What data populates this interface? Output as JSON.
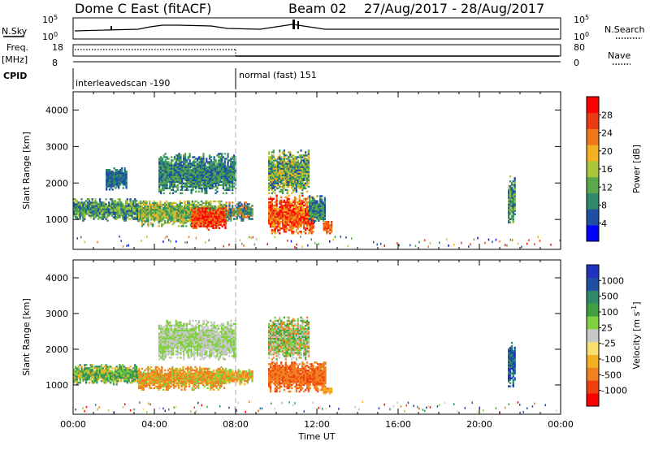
{
  "header": {
    "title": "Dome C East (fitACF)",
    "beam": "Beam 02",
    "date_range": "27/Aug/2017 - 28/Aug/2017"
  },
  "top_panels": {
    "nsky_label": "N.Sky",
    "nsky_ticks": [
      "10^5",
      "10^0"
    ],
    "nsearch_label": "N.Search",
    "nsearch_ticks": [
      "10^5",
      "10^0"
    ],
    "freq_label": "Freq.",
    "freq_unit": "[MHz]",
    "freq_ticks": [
      "18",
      "8"
    ],
    "nave_label": "Nave",
    "nave_ticks": [
      "80",
      "0"
    ],
    "cpid_label": "CPID",
    "cpid_segments": [
      {
        "label": "interleavedscan -190",
        "start_h": 0,
        "end_h": 8
      },
      {
        "label": "normal (fast) 151",
        "start_h": 8,
        "end_h": 24
      }
    ]
  },
  "chart_data": [
    {
      "type": "heatmap",
      "quantity": "Power",
      "ylabel": "Slant Range [km]",
      "colorbar_label": "Power [dB]",
      "colorbar_ticks": [
        "4",
        "8",
        "12",
        "16",
        "20",
        "24",
        "28"
      ],
      "colorbar_colors": [
        "#0000ff",
        "#1f4fa3",
        "#2e8b6a",
        "#5aa84a",
        "#a8c83a",
        "#f4b020",
        "#f07818",
        "#ec3a12",
        "#ff0000"
      ],
      "ylim": [
        180,
        4500
      ],
      "yticks": [
        "1000",
        "2000",
        "3000",
        "4000"
      ],
      "xlim": [
        0,
        24
      ],
      "marker_time_h": 8,
      "echo_regions": [
        {
          "t0": 0.0,
          "t1": 3.2,
          "r0": 950,
          "r1": 1550,
          "colors": [
            "#5aa84a",
            "#2e8b6a",
            "#a8c83a",
            "#1f4fa3"
          ]
        },
        {
          "t0": 3.2,
          "t1": 7.5,
          "r0": 800,
          "r1": 1500,
          "colors": [
            "#5aa84a",
            "#a8c83a",
            "#f4b020",
            "#2e8b6a"
          ]
        },
        {
          "t0": 5.8,
          "t1": 7.5,
          "r0": 700,
          "r1": 1300,
          "colors": [
            "#ec3a12",
            "#f07818",
            "#ff0000"
          ]
        },
        {
          "t0": 7.5,
          "t1": 8.8,
          "r0": 950,
          "r1": 1450,
          "colors": [
            "#5aa84a",
            "#2e8b6a",
            "#f07818",
            "#1f4fa3"
          ]
        },
        {
          "t0": 9.6,
          "t1": 11.8,
          "r0": 600,
          "r1": 1650,
          "colors": [
            "#ec3a12",
            "#ff0000",
            "#f07818",
            "#f4b020"
          ]
        },
        {
          "t0": 11.6,
          "t1": 12.4,
          "r0": 900,
          "r1": 1650,
          "colors": [
            "#5aa84a",
            "#2e8b6a",
            "#1f4fa3"
          ]
        },
        {
          "t0": 12.3,
          "t1": 12.7,
          "r0": 600,
          "r1": 950,
          "colors": [
            "#f07818",
            "#ec3a12"
          ]
        },
        {
          "t0": 9.6,
          "t1": 11.6,
          "r0": 1700,
          "r1": 2900,
          "colors": [
            "#a8c83a",
            "#2e8b6a",
            "#5aa84a",
            "#1f4fa3",
            "#f4b020"
          ]
        },
        {
          "t0": 1.6,
          "t1": 2.6,
          "r0": 1800,
          "r1": 2400,
          "colors": [
            "#1f4fa3",
            "#2e8b6a"
          ]
        },
        {
          "t0": 4.2,
          "t1": 8.0,
          "r0": 1700,
          "r1": 2800,
          "colors": [
            "#1f4fa3",
            "#2e8b6a",
            "#5aa84a"
          ]
        },
        {
          "t0": 21.4,
          "t1": 21.7,
          "r0": 900,
          "r1": 2200,
          "colors": [
            "#1f4fa3",
            "#5aa84a",
            "#2e8b6a",
            "#a8c83a"
          ]
        }
      ]
    },
    {
      "type": "heatmap",
      "quantity": "Velocity",
      "ylabel": "Slant Range [km]",
      "colorbar_label": "Velocity [m s^-1]",
      "colorbar_ticks": [
        "-1000",
        "-500",
        "-100",
        "-25",
        "25",
        "100",
        "500",
        "1000"
      ],
      "colorbar_colors": [
        "#ff0000",
        "#f04010",
        "#f08020",
        "#f4b020",
        "#f8e070",
        "#c8c8c8",
        "#80d040",
        "#40a040",
        "#2e8b6a",
        "#1f4fa3",
        "#2030c0"
      ],
      "ylim": [
        180,
        4500
      ],
      "yticks": [
        "1000",
        "2000",
        "3000",
        "4000"
      ],
      "xlim": [
        0,
        24
      ],
      "xticks": [
        "00:00",
        "04:00",
        "08:00",
        "12:00",
        "16:00",
        "20:00",
        "00:00"
      ],
      "xlabel": "Time UT",
      "marker_time_h": 8,
      "echo_regions": [
        {
          "t0": 0.0,
          "t1": 3.2,
          "r0": 1000,
          "r1": 1550,
          "colors": [
            "#80d040",
            "#40a040",
            "#f4b020",
            "#2e8b6a"
          ]
        },
        {
          "t0": 3.2,
          "t1": 7.5,
          "r0": 850,
          "r1": 1500,
          "colors": [
            "#f08020",
            "#f4b020",
            "#f08020",
            "#80d040"
          ]
        },
        {
          "t0": 7.5,
          "t1": 8.8,
          "r0": 1000,
          "r1": 1450,
          "colors": [
            "#f08020",
            "#f4b020",
            "#80d040"
          ]
        },
        {
          "t0": 9.6,
          "t1": 12.4,
          "r0": 800,
          "r1": 1650,
          "colors": [
            "#f08020",
            "#f08020",
            "#f04010"
          ]
        },
        {
          "t0": 12.3,
          "t1": 12.7,
          "r0": 700,
          "r1": 950,
          "colors": [
            "#f08020",
            "#f4b020"
          ]
        },
        {
          "t0": 9.6,
          "t1": 11.6,
          "r0": 1700,
          "r1": 2900,
          "colors": [
            "#f08020",
            "#c8c8c8",
            "#80d040",
            "#40a040"
          ]
        },
        {
          "t0": 4.2,
          "t1": 8.0,
          "r0": 1700,
          "r1": 2800,
          "colors": [
            "#c8c8c8",
            "#80d040"
          ]
        },
        {
          "t0": 21.4,
          "t1": 21.7,
          "r0": 900,
          "r1": 2200,
          "colors": [
            "#1f4fa3",
            "#2030c0",
            "#2e8b6a"
          ]
        }
      ]
    }
  ]
}
